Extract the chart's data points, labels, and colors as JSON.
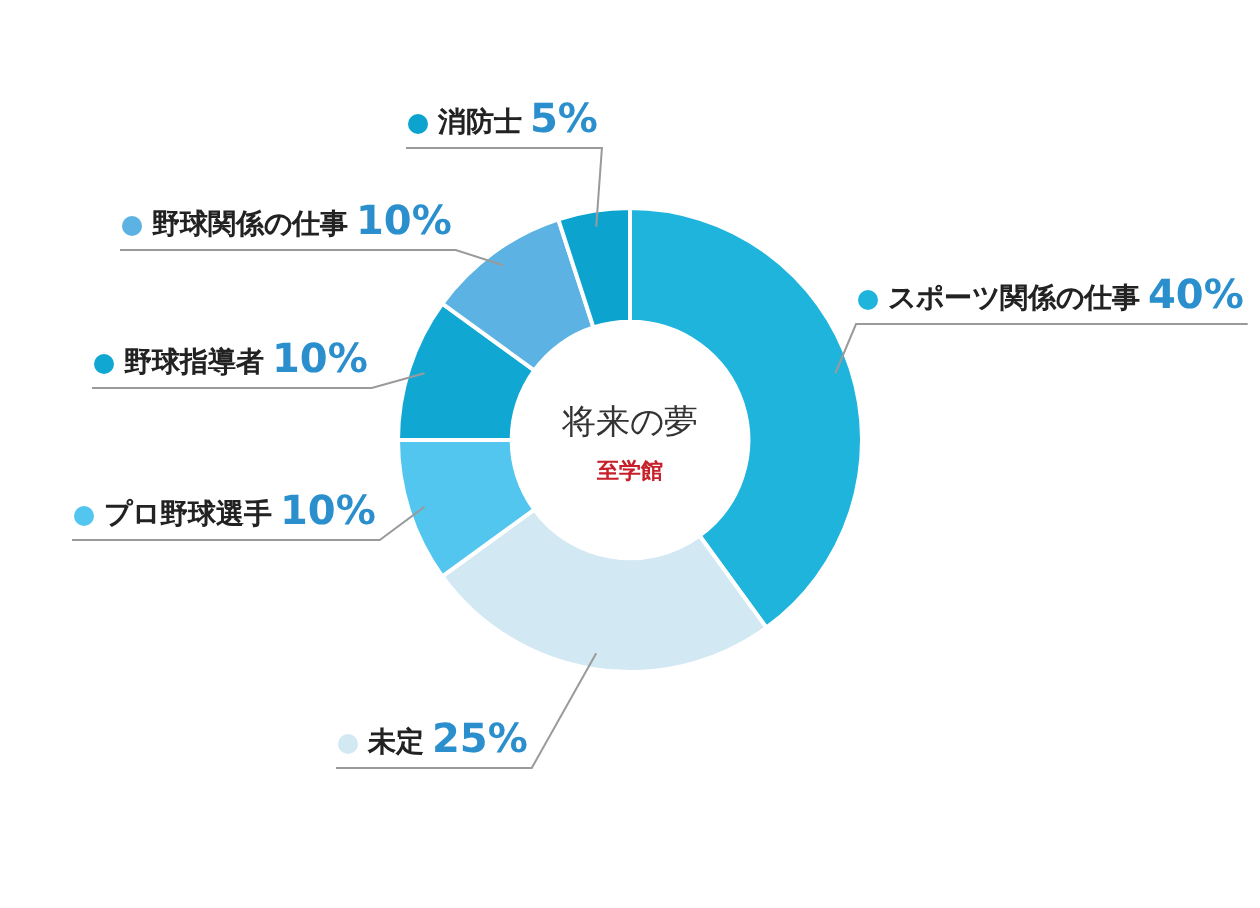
{
  "chart_data": {
    "type": "donut",
    "title": "将来の夢",
    "subtitle": "至学館",
    "categories": [
      "スポーツ関係の仕事",
      "未定",
      "プロ野球選手",
      "野球指導者",
      "野球関係の仕事",
      "消防士"
    ],
    "values": [
      40,
      25,
      10,
      10,
      10,
      5
    ],
    "value_labels": [
      "40%",
      "25%",
      "10%",
      "10%",
      "10%",
      "5%"
    ],
    "colors": [
      "#1eb4dc",
      "#d2e8f3",
      "#52c6ee",
      "#10a8d2",
      "#5cb2e2",
      "#0ca3cf"
    ],
    "legend": "left"
  }
}
